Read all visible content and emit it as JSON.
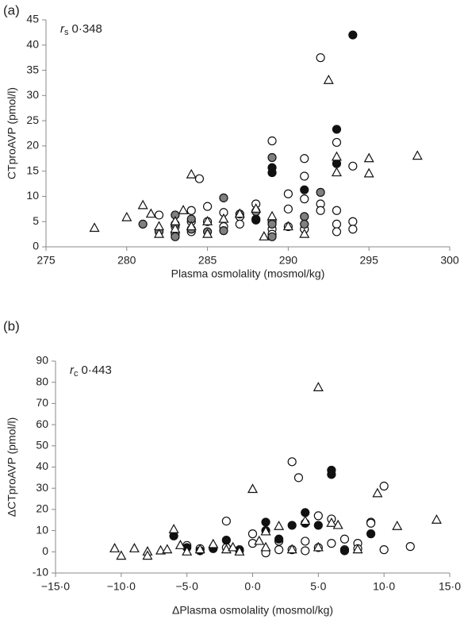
{
  "chart_data": [
    {
      "type": "scatter",
      "panel_label": "(a)",
      "annotation": {
        "symbol": "r",
        "subscript": "s",
        "value": "0·348"
      },
      "x_label": "Plasma osmolality (mosmol/kg)",
      "y_label": "CTproAVP (pmol/l)",
      "xlim": [
        275,
        300
      ],
      "xticks": [
        275,
        280,
        285,
        290,
        295,
        300
      ],
      "ylim": [
        0,
        45
      ],
      "yticks": [
        0,
        5,
        10,
        15,
        20,
        25,
        30,
        35,
        40,
        45
      ],
      "series": [
        {
          "marker": "circle",
          "color": "#ffffff",
          "x": [
            282,
            283,
            283,
            284,
            284,
            284,
            284.5,
            285,
            285,
            286,
            286,
            287,
            287,
            288,
            288,
            289,
            289,
            289,
            289,
            290,
            290,
            290,
            291,
            291,
            291,
            291,
            292,
            292,
            292,
            293,
            293,
            293,
            293,
            294,
            294,
            294
          ],
          "values": [
            6.3,
            4,
            2.5,
            7.2,
            5,
            3,
            13.5,
            8,
            5,
            6.8,
            4,
            6,
            4.5,
            8.5,
            5.5,
            21,
            5,
            3.5,
            2.5,
            10.5,
            7.5,
            4,
            17.5,
            14,
            9.5,
            3.5,
            37.5,
            8.5,
            7.2,
            20.7,
            7.2,
            4.5,
            3,
            16,
            5,
            3.5
          ]
        },
        {
          "marker": "circle",
          "color": "#808080",
          "x": [
            281,
            282,
            283,
            283,
            283,
            284,
            284,
            285,
            286,
            286,
            287,
            288,
            289,
            289,
            289,
            291,
            291,
            292
          ],
          "values": [
            4.5,
            3,
            6.3,
            4.5,
            2,
            5.5,
            3.5,
            3,
            9.7,
            3.2,
            6.5,
            7,
            17.7,
            4.5,
            2,
            6,
            4.5,
            10.8
          ]
        },
        {
          "marker": "circle",
          "color": "#111111",
          "x": [
            288,
            289,
            289,
            291,
            293,
            293,
            294
          ],
          "values": [
            5.3,
            15.7,
            14.7,
            11.3,
            23.3,
            16.5,
            42
          ]
        },
        {
          "marker": "triangle",
          "color": "#ffffff",
          "x": [
            278,
            280,
            281,
            281.5,
            282,
            282,
            283,
            283,
            283.5,
            284,
            284,
            285,
            285,
            286,
            287,
            288,
            288.5,
            289,
            290,
            291,
            292.5,
            293,
            293,
            295,
            295,
            298
          ],
          "values": [
            3.7,
            5.8,
            8.2,
            6.5,
            4,
            2.5,
            3.5,
            5,
            7.2,
            14.3,
            4,
            2.5,
            5,
            5.5,
            6.5,
            7.5,
            2,
            6,
            4,
            2.5,
            33,
            14.7,
            17.8,
            17.5,
            14.5,
            18
          ]
        }
      ]
    },
    {
      "type": "scatter",
      "panel_label": "(b)",
      "annotation": {
        "symbol": "r",
        "subscript": "c",
        "value": "0·443"
      },
      "x_label": "ΔPlasma osmolality (mosmol/kg)",
      "y_label": "ΔCTproAVP (pmol/l)",
      "xlim": [
        -15,
        15
      ],
      "xticks": [
        {
          "value": -15,
          "label": "−15·0"
        },
        {
          "value": -10,
          "label": "−10·0"
        },
        {
          "value": -5,
          "label": "−5·0"
        },
        {
          "value": 0,
          "label": "0·0"
        },
        {
          "value": 5,
          "label": "5·0"
        },
        {
          "value": 10,
          "label": "10·0"
        },
        {
          "value": 15,
          "label": "15·0"
        }
      ],
      "ylim": [
        -10,
        90
      ],
      "yticks": [
        -10,
        0,
        10,
        20,
        30,
        40,
        50,
        60,
        70,
        80,
        90
      ],
      "series": [
        {
          "marker": "circle",
          "color": "#ffffff",
          "x": [
            -5,
            -4,
            -3,
            -2,
            -2,
            -1,
            0,
            0,
            1,
            2,
            2,
            3,
            3,
            3.5,
            4,
            4,
            5,
            5,
            6,
            6,
            7,
            7,
            8,
            8,
            9,
            9,
            10,
            10,
            12
          ],
          "values": [
            3,
            1.5,
            2,
            14.5,
            2,
            1,
            8.5,
            4,
            -0.5,
            5,
            1,
            42.5,
            1,
            35,
            5,
            0.5,
            17,
            2,
            15.5,
            4,
            6,
            1,
            4,
            1.5,
            14,
            13.5,
            31,
            1,
            2.5
          ]
        },
        {
          "marker": "circle",
          "color": "#111111",
          "x": [
            -6,
            -5,
            -4,
            -3,
            -2,
            -1,
            1,
            1,
            2,
            3,
            4,
            4,
            5,
            6,
            6,
            7,
            9
          ],
          "values": [
            7.5,
            2,
            0.5,
            1.5,
            5.5,
            0.5,
            14,
            10,
            6,
            12.5,
            18.5,
            13.5,
            12.5,
            38.5,
            36.5,
            0.5,
            8.5
          ]
        },
        {
          "marker": "triangle",
          "color": "#ffffff",
          "x": [
            -10.5,
            -10,
            -9,
            -8,
            -8,
            -7,
            -6.5,
            -6,
            -5.5,
            -5,
            -4,
            -3,
            -2,
            -1.5,
            -1,
            0,
            0.5,
            1,
            1,
            2,
            3,
            4,
            5,
            5,
            6,
            6.5,
            8,
            9.5,
            11,
            14
          ],
          "values": [
            1.5,
            -2,
            1.5,
            0,
            -2,
            0.5,
            1,
            10.5,
            3,
            0,
            1,
            3.5,
            1,
            2,
            0,
            29.5,
            5,
            9.5,
            2,
            12,
            1,
            14.5,
            77.5,
            2,
            13.5,
            12.5,
            1,
            27.5,
            12,
            15
          ]
        }
      ]
    }
  ]
}
